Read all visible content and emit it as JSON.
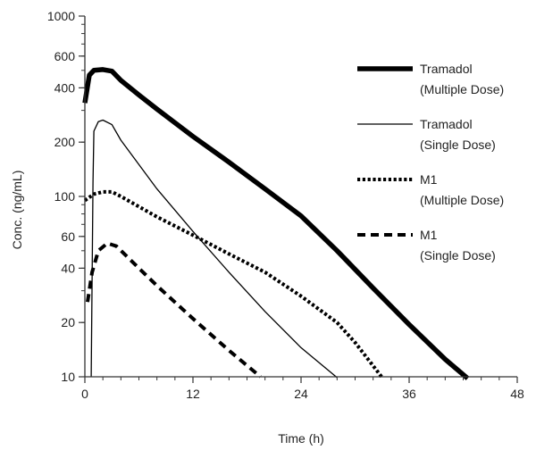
{
  "chart_data": {
    "type": "line",
    "title": "",
    "xlabel": "Time (h)",
    "ylabel": "Conc. (ng/mL)",
    "xlim": [
      0,
      48
    ],
    "ylim": [
      10,
      1000
    ],
    "yscale": "log",
    "x_ticks": [
      0,
      12,
      24,
      36,
      48
    ],
    "y_ticks": [
      10,
      20,
      40,
      60,
      100,
      200,
      400,
      600,
      1000
    ],
    "grid": false,
    "legend_position": "right",
    "series": [
      {
        "legend_line1": "Tramadol",
        "legend_line2": "(Multiple Dose)",
        "style": "thick-solid",
        "color": "#000000",
        "points": [
          [
            0,
            330
          ],
          [
            0.5,
            470
          ],
          [
            1,
            500
          ],
          [
            2,
            505
          ],
          [
            3,
            495
          ],
          [
            4,
            440
          ],
          [
            6,
            365
          ],
          [
            8,
            305
          ],
          [
            12,
            215
          ],
          [
            16,
            155
          ],
          [
            20,
            110
          ],
          [
            24,
            78
          ],
          [
            28,
            50
          ],
          [
            32,
            31
          ],
          [
            36,
            19.5
          ],
          [
            40,
            12.5
          ],
          [
            42.5,
            9.8
          ]
        ]
      },
      {
        "legend_line1": "Tramadol",
        "legend_line2": "(Single Dose)",
        "style": "thin-solid",
        "color": "#000000",
        "points": [
          [
            0.7,
            10
          ],
          [
            0.9,
            120
          ],
          [
            1,
            230
          ],
          [
            1.5,
            260
          ],
          [
            2,
            265
          ],
          [
            3,
            250
          ],
          [
            4,
            205
          ],
          [
            8,
            110
          ],
          [
            12,
            64
          ],
          [
            16,
            38
          ],
          [
            20,
            23
          ],
          [
            24,
            14.5
          ],
          [
            28,
            9.9
          ]
        ]
      },
      {
        "legend_line1": "M1",
        "legend_line2": "(Multiple Dose)",
        "style": "dotted",
        "color": "#000000",
        "points": [
          [
            0,
            95
          ],
          [
            1,
            103
          ],
          [
            2,
            106
          ],
          [
            3,
            106
          ],
          [
            4,
            100
          ],
          [
            8,
            77
          ],
          [
            12,
            61
          ],
          [
            16,
            48
          ],
          [
            20,
            38
          ],
          [
            24,
            28
          ],
          [
            28,
            20
          ],
          [
            30,
            15.5
          ],
          [
            32,
            11.5
          ],
          [
            33,
            9.9
          ]
        ]
      },
      {
        "legend_line1": "M1",
        "legend_line2": "(Single Dose)",
        "style": "dashed",
        "color": "#000000",
        "points": [
          [
            0.3,
            26
          ],
          [
            0.8,
            38
          ],
          [
            1.5,
            50
          ],
          [
            2.5,
            55
          ],
          [
            3.5,
            53
          ],
          [
            6,
            40
          ],
          [
            8,
            32
          ],
          [
            12,
            21
          ],
          [
            16,
            14
          ],
          [
            19.5,
            10
          ]
        ]
      }
    ]
  }
}
